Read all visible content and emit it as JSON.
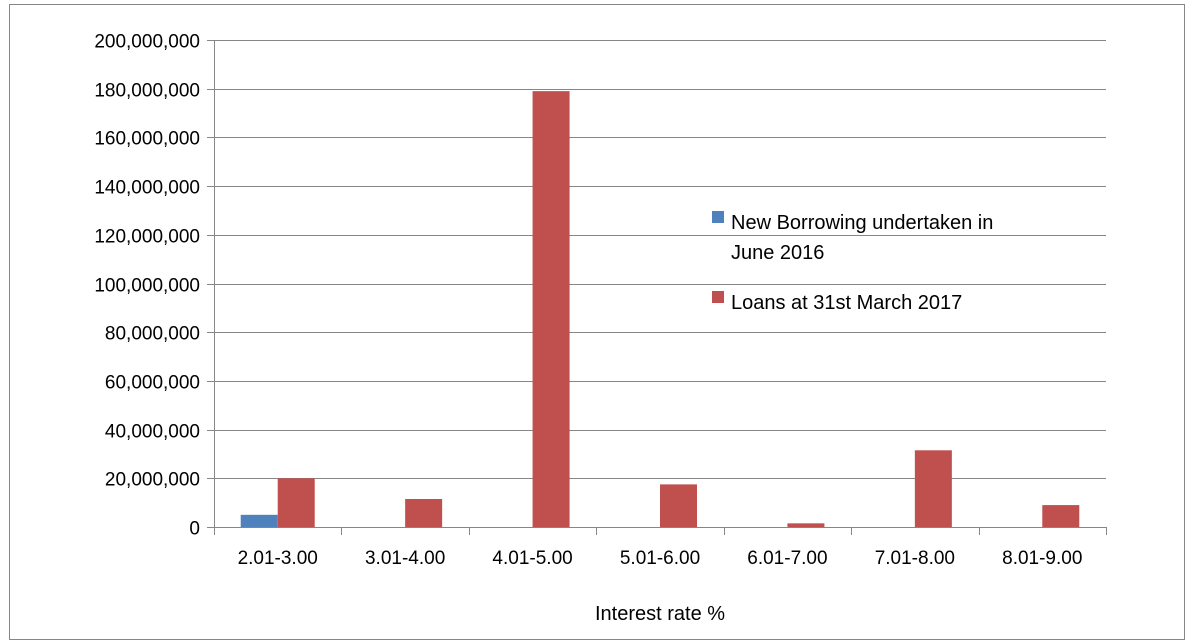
{
  "chart_data": {
    "type": "bar",
    "title": "",
    "xlabel": "Interest rate %",
    "ylabel": "",
    "categories": [
      "2.01-3.00",
      "3.01-4.00",
      "4.01-5.00",
      "5.01-6.00",
      "6.01-7.00",
      "7.01-8.00",
      "8.01-9.00"
    ],
    "series": [
      {
        "name": "New Borrowing undertaken in June 2016",
        "color": "#4F81BD",
        "values": [
          5000000,
          0,
          0,
          0,
          0,
          0,
          0
        ]
      },
      {
        "name": "Loans at 31st March 2017",
        "color": "#C0504D",
        "values": [
          20000000,
          11500000,
          179000000,
          17500000,
          1500000,
          31500000,
          9000000
        ]
      }
    ],
    "ylim": [
      0,
      200000000
    ],
    "yticks": [
      0,
      20000000,
      40000000,
      60000000,
      80000000,
      100000000,
      120000000,
      140000000,
      160000000,
      180000000,
      200000000
    ],
    "ytick_labels": [
      "0",
      "20,000,000",
      "40,000,000",
      "60,000,000",
      "80,000,000",
      "100,000,000",
      "120,000,000",
      "140,000,000",
      "160,000,000",
      "180,000,000",
      "200,000,000"
    ],
    "grid": true,
    "legend_position": "right",
    "legend_lines": [
      [
        "New Borrowing undertaken in",
        "June 2016"
      ],
      [
        "Loans at 31st March 2017"
      ]
    ]
  }
}
